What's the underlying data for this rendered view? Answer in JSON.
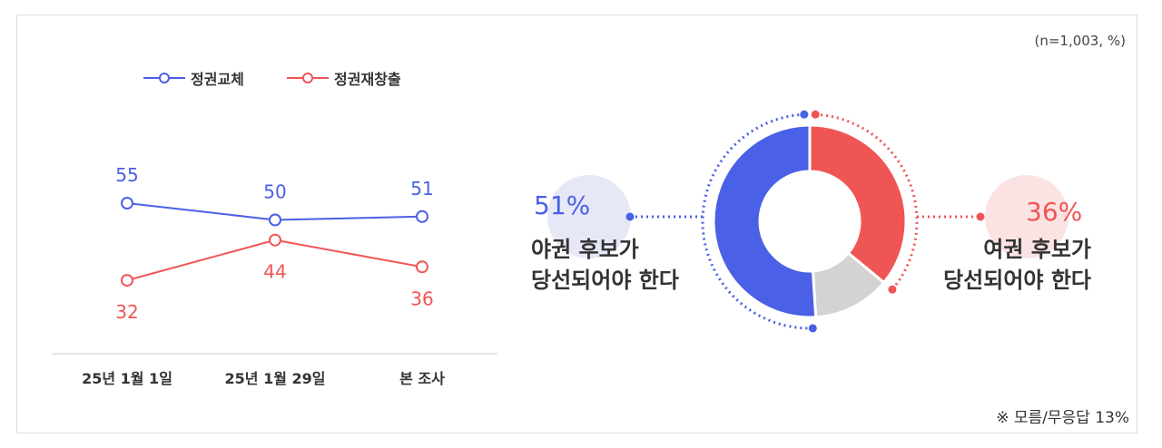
{
  "sample_note": "(n=1,003, %)",
  "footnote": "※ 모름/무응답 13%",
  "colors": {
    "blue": "#4a60e6",
    "red": "#f05555",
    "gray": "#d3d3d3"
  },
  "chart_data": [
    {
      "type": "line",
      "categories": [
        "25년 1월 1일",
        "25년 1월 29일",
        "본 조사"
      ],
      "series": [
        {
          "name": "정권교체",
          "values": [
            55,
            50,
            51
          ],
          "color": "#4a60e6"
        },
        {
          "name": "정권재창출",
          "values": [
            32,
            44,
            36
          ],
          "color": "#f05555"
        }
      ]
    },
    {
      "type": "pie",
      "style": "donut",
      "slices": [
        {
          "label": "여권 후보가 당선되어야 한다",
          "value": 36,
          "color": "#f05555"
        },
        {
          "label": "모름/무응답",
          "value": 13,
          "color": "#d3d3d3"
        },
        {
          "label": "야권 후보가 당선되어야 한다",
          "value": 51,
          "color": "#4a60e6"
        }
      ],
      "callouts": [
        {
          "pct": "51%",
          "line1": "야권 후보가",
          "line2": "당선되어야 한다"
        },
        {
          "pct": "36%",
          "line1": "여권 후보가",
          "line2": "당선되어야 한다"
        }
      ]
    }
  ]
}
